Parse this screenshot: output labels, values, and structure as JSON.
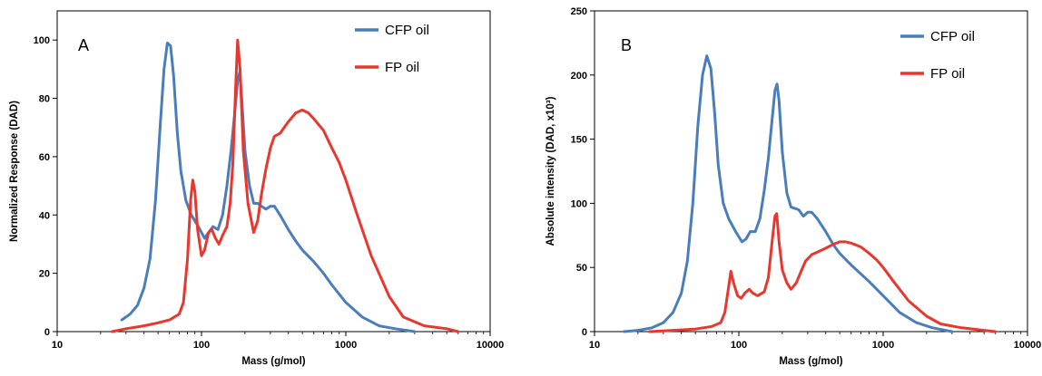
{
  "chart_data": [
    {
      "type": "line",
      "panel_label": "A",
      "xlabel": "Mass (g/mol)",
      "ylabel": "Normalized Response (DAD)",
      "xscale": "log",
      "xlim": [
        10,
        10000
      ],
      "ylim": [
        0,
        110
      ],
      "xticks": [
        "10",
        "100",
        "1000",
        "10000"
      ],
      "yticks": [
        "0",
        "20",
        "40",
        "60",
        "80",
        "100"
      ],
      "grid": false,
      "legend_position": "top-right",
      "series": [
        {
          "name": "CFP oil",
          "color": "#4a7ebb",
          "points": [
            [
              28,
              4
            ],
            [
              32,
              6
            ],
            [
              36,
              9
            ],
            [
              40,
              15
            ],
            [
              44,
              25
            ],
            [
              48,
              45
            ],
            [
              52,
              72
            ],
            [
              55,
              90
            ],
            [
              58,
              99
            ],
            [
              61,
              98
            ],
            [
              64,
              88
            ],
            [
              68,
              68
            ],
            [
              72,
              55
            ],
            [
              78,
              45
            ],
            [
              85,
              40
            ],
            [
              95,
              36
            ],
            [
              105,
              32
            ],
            [
              112,
              34
            ],
            [
              120,
              36
            ],
            [
              130,
              35
            ],
            [
              140,
              40
            ],
            [
              150,
              50
            ],
            [
              160,
              62
            ],
            [
              170,
              75
            ],
            [
              178,
              86
            ],
            [
              184,
              89
            ],
            [
              190,
              80
            ],
            [
              200,
              62
            ],
            [
              215,
              50
            ],
            [
              230,
              44
            ],
            [
              245,
              44
            ],
            [
              260,
              43
            ],
            [
              280,
              42
            ],
            [
              300,
              43
            ],
            [
              320,
              43
            ],
            [
              350,
              40
            ],
            [
              400,
              35
            ],
            [
              450,
              31
            ],
            [
              500,
              28
            ],
            [
              600,
              24
            ],
            [
              700,
              20
            ],
            [
              800,
              16
            ],
            [
              1000,
              10
            ],
            [
              1300,
              5
            ],
            [
              1700,
              2
            ],
            [
              2200,
              1
            ],
            [
              3000,
              0
            ]
          ]
        },
        {
          "name": "FP oil",
          "color": "#e8372f",
          "points": [
            [
              24,
              0
            ],
            [
              30,
              1
            ],
            [
              40,
              2
            ],
            [
              50,
              3
            ],
            [
              60,
              4
            ],
            [
              70,
              6
            ],
            [
              75,
              10
            ],
            [
              80,
              25
            ],
            [
              84,
              45
            ],
            [
              87,
              52
            ],
            [
              90,
              48
            ],
            [
              94,
              35
            ],
            [
              100,
              26
            ],
            [
              105,
              28
            ],
            [
              112,
              34
            ],
            [
              118,
              35
            ],
            [
              125,
              32
            ],
            [
              132,
              30
            ],
            [
              140,
              33
            ],
            [
              150,
              36
            ],
            [
              158,
              44
            ],
            [
              165,
              58
            ],
            [
              172,
              82
            ],
            [
              178,
              100
            ],
            [
              185,
              90
            ],
            [
              195,
              62
            ],
            [
              210,
              44
            ],
            [
              230,
              34
            ],
            [
              245,
              38
            ],
            [
              260,
              47
            ],
            [
              280,
              56
            ],
            [
              300,
              63
            ],
            [
              320,
              67
            ],
            [
              350,
              68
            ],
            [
              400,
              72
            ],
            [
              450,
              75
            ],
            [
              500,
              76
            ],
            [
              550,
              75
            ],
            [
              600,
              73
            ],
            [
              700,
              69
            ],
            [
              800,
              63
            ],
            [
              900,
              58
            ],
            [
              1000,
              52
            ],
            [
              1200,
              40
            ],
            [
              1500,
              26
            ],
            [
              2000,
              12
            ],
            [
              2500,
              5
            ],
            [
              3500,
              2
            ],
            [
              5000,
              1
            ],
            [
              6000,
              0
            ]
          ]
        }
      ]
    },
    {
      "type": "line",
      "panel_label": "B",
      "xlabel": "Mass (g/mol)",
      "ylabel": "Absolute intensity (DAD, x10³)",
      "xscale": "log",
      "xlim": [
        10,
        10000
      ],
      "ylim": [
        0,
        250
      ],
      "xticks": [
        "10",
        "100",
        "1000",
        "10000"
      ],
      "yticks": [
        "0",
        "50",
        "100",
        "150",
        "200",
        "250"
      ],
      "grid": false,
      "legend_position": "top-right",
      "series": [
        {
          "name": "CFP oil",
          "color": "#4a7ebb",
          "points": [
            [
              16,
              0
            ],
            [
              20,
              1
            ],
            [
              25,
              3
            ],
            [
              30,
              7
            ],
            [
              35,
              15
            ],
            [
              40,
              30
            ],
            [
              44,
              55
            ],
            [
              48,
              100
            ],
            [
              52,
              160
            ],
            [
              56,
              200
            ],
            [
              60,
              215
            ],
            [
              64,
              205
            ],
            [
              68,
              170
            ],
            [
              72,
              130
            ],
            [
              78,
              100
            ],
            [
              85,
              88
            ],
            [
              95,
              78
            ],
            [
              105,
              70
            ],
            [
              112,
              72
            ],
            [
              120,
              78
            ],
            [
              130,
              78
            ],
            [
              140,
              88
            ],
            [
              150,
              110
            ],
            [
              160,
              135
            ],
            [
              170,
              165
            ],
            [
              178,
              188
            ],
            [
              184,
              193
            ],
            [
              190,
              180
            ],
            [
              200,
              140
            ],
            [
              215,
              108
            ],
            [
              230,
              97
            ],
            [
              245,
              96
            ],
            [
              260,
              95
            ],
            [
              280,
              90
            ],
            [
              300,
              93
            ],
            [
              320,
              93
            ],
            [
              350,
              88
            ],
            [
              400,
              78
            ],
            [
              450,
              68
            ],
            [
              500,
              61
            ],
            [
              600,
              52
            ],
            [
              700,
              45
            ],
            [
              800,
              39
            ],
            [
              1000,
              28
            ],
            [
              1300,
              15
            ],
            [
              1700,
              7
            ],
            [
              2200,
              3
            ],
            [
              3000,
              0
            ]
          ]
        },
        {
          "name": "FP oil",
          "color": "#e8372f",
          "points": [
            [
              24,
              0
            ],
            [
              35,
              1
            ],
            [
              50,
              2
            ],
            [
              65,
              4
            ],
            [
              75,
              7
            ],
            [
              80,
              15
            ],
            [
              85,
              35
            ],
            [
              88,
              47
            ],
            [
              92,
              38
            ],
            [
              98,
              28
            ],
            [
              104,
              26
            ],
            [
              110,
              30
            ],
            [
              118,
              33
            ],
            [
              125,
              30
            ],
            [
              135,
              28
            ],
            [
              150,
              31
            ],
            [
              160,
              42
            ],
            [
              170,
              70
            ],
            [
              178,
              90
            ],
            [
              183,
              92
            ],
            [
              190,
              70
            ],
            [
              200,
              48
            ],
            [
              215,
              38
            ],
            [
              230,
              33
            ],
            [
              250,
              38
            ],
            [
              270,
              47
            ],
            [
              290,
              55
            ],
            [
              320,
              60
            ],
            [
              350,
              62
            ],
            [
              400,
              65
            ],
            [
              450,
              68
            ],
            [
              500,
              70
            ],
            [
              550,
              70
            ],
            [
              600,
              69
            ],
            [
              700,
              66
            ],
            [
              800,
              61
            ],
            [
              900,
              56
            ],
            [
              1000,
              50
            ],
            [
              1200,
              38
            ],
            [
              1500,
              24
            ],
            [
              2000,
              12
            ],
            [
              2500,
              6
            ],
            [
              3500,
              3
            ],
            [
              5000,
              1
            ],
            [
              6000,
              0
            ]
          ]
        }
      ]
    }
  ]
}
